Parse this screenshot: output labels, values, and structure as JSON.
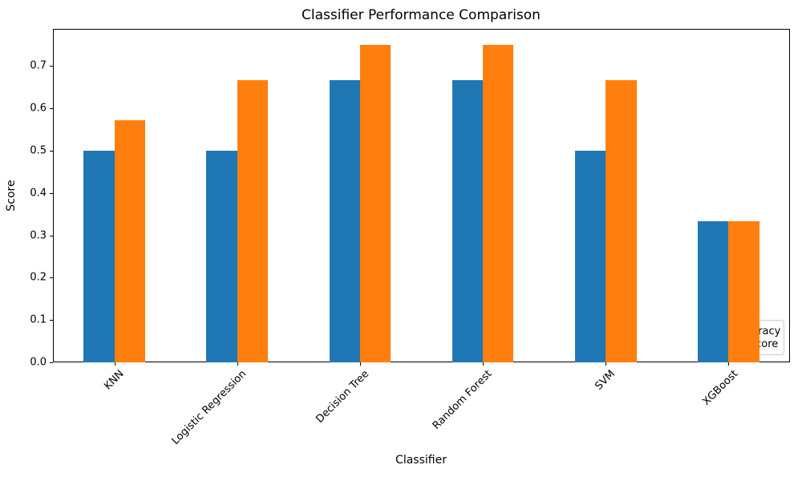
{
  "chart_data": {
    "type": "bar",
    "title": "Classifier Performance Comparison",
    "xlabel": "Classifier",
    "ylabel": "Score",
    "categories": [
      "KNN",
      "Logistic Regression",
      "Decision Tree",
      "Random Forest",
      "SVM",
      "XGBoost"
    ],
    "series": [
      {
        "name": "Accuracy",
        "color": "#1f77b4",
        "values": [
          0.5,
          0.5,
          0.6667,
          0.6667,
          0.5,
          0.3333
        ]
      },
      {
        "name": "F1 Score",
        "color": "#ff7f0e",
        "values": [
          0.5714,
          0.6667,
          0.75,
          0.75,
          0.6667,
          0.3333
        ]
      }
    ],
    "y_ticks": [
      "0.0",
      "0.1",
      "0.2",
      "0.3",
      "0.4",
      "0.5",
      "0.6",
      "0.7"
    ],
    "ylim": [
      0,
      0.7875
    ],
    "grid": false,
    "legend_position": "lower right",
    "tick_rotation_deg": 45
  }
}
